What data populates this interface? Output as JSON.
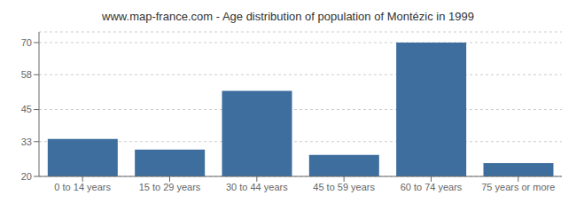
{
  "chart_data": {
    "type": "bar",
    "title": "www.map-france.com - Age distribution of population of Montézic in 1999",
    "categories": [
      "0 to 14 years",
      "15 to 29 years",
      "30 to 44 years",
      "45 to 59 years",
      "60 to 74 years",
      "75 years or more"
    ],
    "values": [
      34,
      30,
      52,
      28,
      70,
      25
    ],
    "color": "#3d6e9e",
    "ylim": [
      20,
      74
    ],
    "yticks": [
      20,
      33,
      45,
      58,
      70
    ],
    "grid": true
  }
}
